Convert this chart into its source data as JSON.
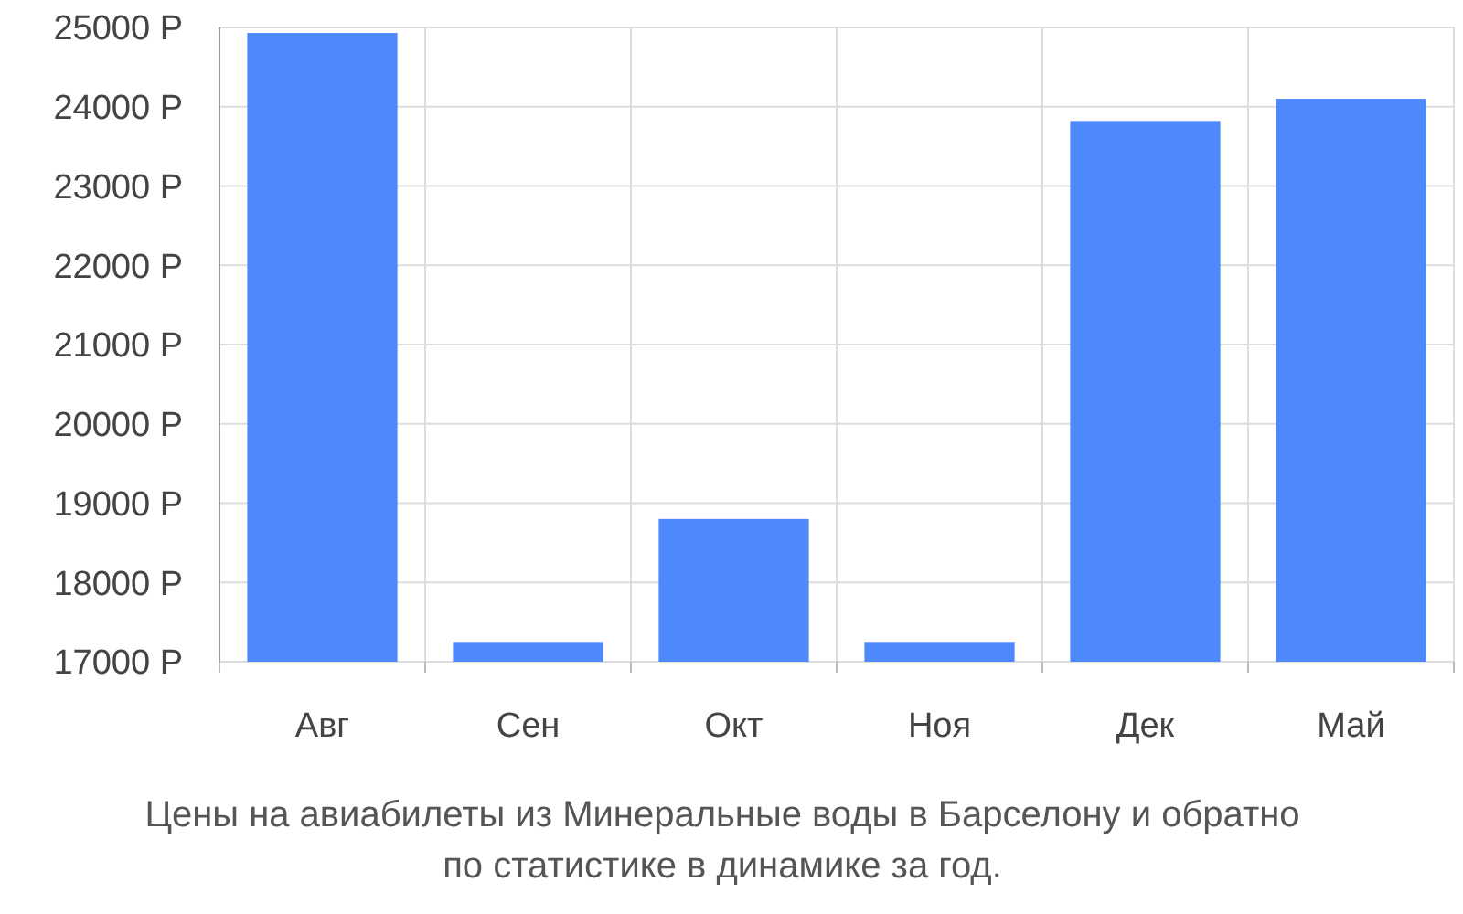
{
  "chart_data": {
    "type": "bar",
    "categories": [
      "Авг",
      "Сен",
      "Окт",
      "Ноя",
      "Дек",
      "Май"
    ],
    "values": [
      24930,
      17250,
      18800,
      17250,
      23820,
      24100
    ],
    "color": "#4e89fb",
    "ylim": [
      17000,
      25000
    ],
    "yticks": [
      {
        "value": 17000,
        "label": "17000 Р"
      },
      {
        "value": 18000,
        "label": "18000 Р"
      },
      {
        "value": 19000,
        "label": "19000 Р"
      },
      {
        "value": 20000,
        "label": "20000 Р"
      },
      {
        "value": 21000,
        "label": "21000 Р"
      },
      {
        "value": 22000,
        "label": "22000 Р"
      },
      {
        "value": 23000,
        "label": "23000 Р"
      },
      {
        "value": 24000,
        "label": "24000 Р"
      },
      {
        "value": 25000,
        "label": "25000 Р"
      }
    ],
    "grid": true,
    "annotations": [
      "Цены на авиабилеты из Минеральные воды в Барселону и обратно",
      "по статистике в динамике за год."
    ]
  }
}
